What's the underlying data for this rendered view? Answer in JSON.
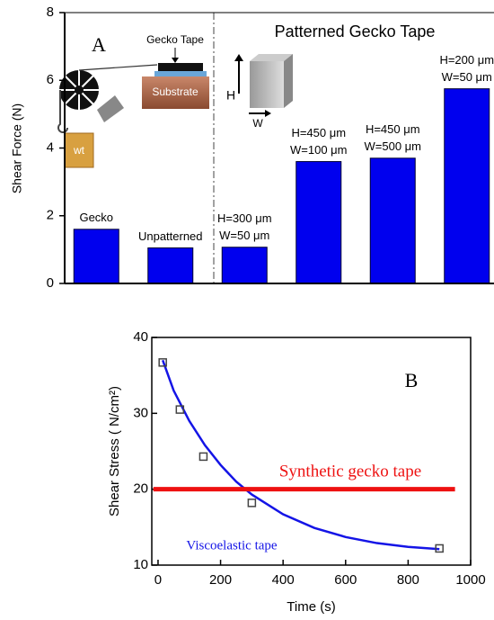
{
  "chart_data": [
    {
      "type": "bar",
      "title": "Patterned Gecko Tape",
      "ylabel": "Shear Force (N)",
      "categories": [
        [
          "Gecko"
        ],
        [
          "Unpatterned"
        ],
        [
          "H=300 μm",
          "W=50 μm"
        ],
        [
          "H=450 μm",
          "W=100 μm"
        ],
        [
          "H=450 μm",
          "W=500 μm"
        ],
        [
          "H=200 μm",
          "W=50 μm"
        ]
      ],
      "values": [
        1.6,
        1.05,
        1.07,
        3.6,
        3.7,
        5.75
      ],
      "color": "#0000ee",
      "ylim": [
        0,
        8
      ],
      "yticks": [
        0,
        2,
        4,
        6,
        8
      ],
      "annotations": [
        "A",
        "Gecko Tape",
        "Substrate",
        "wt",
        "H",
        "W"
      ]
    },
    {
      "type": "line",
      "xlabel": "Time (s)",
      "ylabel": "Shear Stress ( N/cm²)",
      "xlim": [
        -20,
        1000
      ],
      "xticks": [
        0,
        200,
        400,
        600,
        800,
        1000
      ],
      "ylim": [
        10,
        40
      ],
      "yticks": [
        10,
        20,
        30,
        40
      ],
      "annotations": [
        "B"
      ],
      "series": [
        {
          "name": "Viscoelastic tape",
          "color": "#1414e6",
          "x": [
            15,
            50,
            100,
            150,
            200,
            250,
            300,
            400,
            500,
            600,
            700,
            800,
            900
          ],
          "values": [
            37,
            33,
            29,
            25.8,
            23.2,
            21,
            19.3,
            16.7,
            14.9,
            13.7,
            12.9,
            12.4,
            12.1
          ]
        },
        {
          "name": "Synthetic gecko tape",
          "color": "#ee1111",
          "x": [
            -15,
            950
          ],
          "values": [
            20,
            20
          ]
        },
        {
          "color": "#444444",
          "marker": "square",
          "x": [
            15,
            70,
            145,
            300,
            900
          ],
          "values": [
            36.7,
            30.5,
            24.3,
            18.2,
            12.2
          ]
        }
      ]
    }
  ]
}
